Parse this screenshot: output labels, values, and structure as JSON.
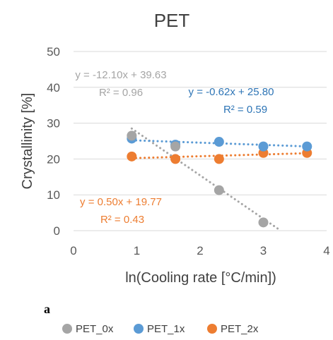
{
  "chart_data": {
    "type": "scatter",
    "title": "PET",
    "xlabel": "ln(Cooling rate [°C/min])",
    "ylabel": "Crystallinity  [%]",
    "xlim": [
      0,
      4
    ],
    "ylim": [
      0,
      50
    ],
    "xticks": [
      "0",
      "1",
      "2",
      "3",
      "4"
    ],
    "yticks": [
      "0",
      "10",
      "20",
      "30",
      "40",
      "50"
    ],
    "grid": "horizontal",
    "legend_position": "bottom",
    "panel_label": "a",
    "series": [
      {
        "name": "PET_0x",
        "color": "#a5a5a5",
        "x": [
          0.92,
          1.61,
          2.3,
          3.0
        ],
        "y": [
          26.5,
          23.5,
          11.3,
          2.3
        ],
        "trendline": {
          "slope": -12.1,
          "intercept": 39.63,
          "x_range": [
            0.92,
            3.27
          ]
        },
        "equation": "y = -12.10x + 39.63",
        "r2": "R² = 0.96"
      },
      {
        "name": "PET_1x",
        "color": "#5b9bd5",
        "x": [
          0.92,
          1.61,
          2.3,
          3.0,
          3.69
        ],
        "y": [
          25.7,
          24.0,
          24.8,
          23.5,
          23.5
        ],
        "trendline": {
          "slope": -0.62,
          "intercept": 25.8,
          "x_range": [
            0.92,
            3.69
          ]
        },
        "equation": "y = -0.62x + 25.80",
        "r2": "R² = 0.59"
      },
      {
        "name": "PET_2x",
        "color": "#ed7d31",
        "x": [
          0.92,
          1.61,
          2.3,
          3.0,
          3.69
        ],
        "y": [
          20.7,
          20.0,
          20.0,
          21.7,
          21.7
        ],
        "trendline": {
          "slope": 0.5,
          "intercept": 19.77,
          "x_range": [
            0.92,
            3.69
          ]
        },
        "equation": "y = 0.50x + 19.77",
        "r2": "R² = 0.43"
      }
    ]
  }
}
